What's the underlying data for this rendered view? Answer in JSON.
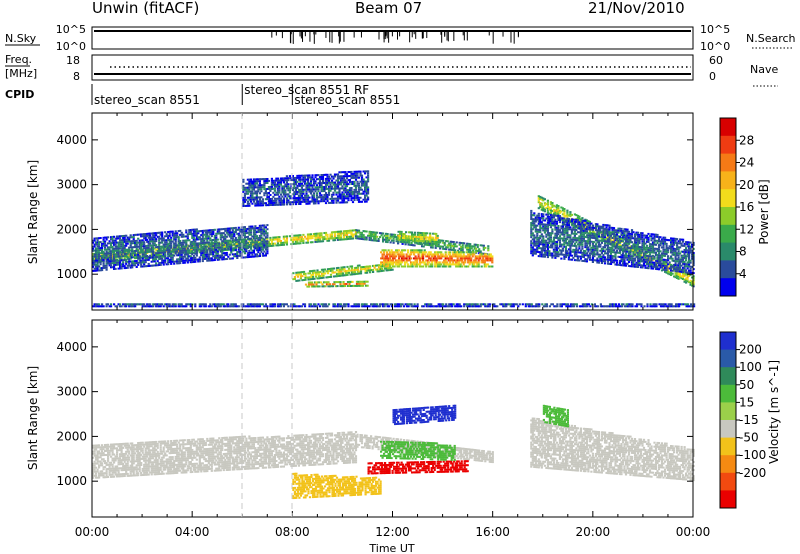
{
  "header": {
    "station": "Unwin (fitACF)",
    "beam": "Beam 07",
    "date": "21/Nov/2010"
  },
  "strips": {
    "nsky_label": "N.Sky",
    "nsearch_label": "N.Search",
    "nsky_ticks": [
      "10^5",
      "10^0"
    ],
    "nsearch_ticks": [
      "10^5",
      "10^0"
    ],
    "freq_label_1": "Freq.",
    "freq_label_2": "[MHz]",
    "freq_ticks": [
      "18",
      "8"
    ],
    "nave_label": "Nave",
    "nave_ticks": [
      "60",
      "0"
    ],
    "cpid_label": "CPID"
  },
  "cpid_segments": [
    {
      "start_hour": 0.0,
      "label": "stereo_scan 8551",
      "row": 1
    },
    {
      "start_hour": 6.0,
      "label": "stereo_scan 8551 RF",
      "row": 0
    },
    {
      "start_hour": 8.0,
      "label": "stereo_scan 8551",
      "row": 1
    }
  ],
  "chart_data": [
    {
      "type": "heatmap",
      "title": "",
      "xlabel": "Time UT",
      "ylabel": "Slant Range [km]",
      "xlim": [
        0,
        24
      ],
      "ylim": [
        200,
        4600
      ],
      "x_ticks": [
        "00:00",
        "04:00",
        "08:00",
        "12:00",
        "16:00",
        "20:00",
        "00:00"
      ],
      "y_ticks": [
        "1000",
        "2000",
        "3000",
        "4000"
      ],
      "colorbar": {
        "label": "Power [dB]",
        "ticks": [
          "4",
          "8",
          "12",
          "16",
          "20",
          "24",
          "28"
        ],
        "range": [
          0,
          32
        ],
        "colors": [
          "#0000ee",
          "#2a4b9c",
          "#2a8a6a",
          "#3aaa4a",
          "#8ccc2a",
          "#f2dc1c",
          "#f7b21a",
          "#f57a16",
          "#ef3c12",
          "#d80000"
        ]
      },
      "echo_regions": [
        {
          "t": [
            0,
            10.5
          ],
          "r_start": [
            1250,
            1780
          ],
          "r_end": [
            1450,
            2000
          ],
          "value": 17
        },
        {
          "t": [
            0,
            7
          ],
          "r_start": [
            1050,
            1400
          ],
          "r_end": [
            1800,
            2100
          ],
          "value": 6
        },
        {
          "t": [
            10.5,
            15.8
          ],
          "r_start": [
            1780,
            1420
          ],
          "r_end": [
            2000,
            1620
          ],
          "value": 11
        },
        {
          "t": [
            8,
            12
          ],
          "r_start": [
            820,
            1080
          ],
          "r_end": [
            1020,
            1250
          ],
          "value": 17
        },
        {
          "t": [
            8.5,
            11
          ],
          "r_start": [
            700,
            720
          ],
          "r_end": [
            800,
            820
          ],
          "value": 21
        },
        {
          "t": [
            11.5,
            16
          ],
          "r_start": [
            1150,
            1150
          ],
          "r_end": [
            1550,
            1450
          ],
          "value": 24
        },
        {
          "t": [
            12.2,
            13.8
          ],
          "r_start": [
            1700,
            1650
          ],
          "r_end": [
            1950,
            1900
          ],
          "value": 16
        },
        {
          "t": [
            6,
            11
          ],
          "r_start": [
            2500,
            2600
          ],
          "r_end": [
            3100,
            3300
          ],
          "value": 5
        },
        {
          "t": [
            17.8,
            24
          ],
          "r_start": [
            2450,
            700
          ],
          "r_end": [
            2750,
            950
          ],
          "value": 16
        },
        {
          "t": [
            17.5,
            24
          ],
          "r_start": [
            1400,
            1000
          ],
          "r_end": [
            2400,
            1700
          ],
          "value": 6
        },
        {
          "t": [
            0,
            24
          ],
          "r_start": [
            260,
            260
          ],
          "r_end": [
            330,
            330
          ],
          "value": 5
        }
      ]
    },
    {
      "type": "heatmap",
      "title": "",
      "xlabel": "Time UT",
      "ylabel": "Slant Range [km]",
      "xlim": [
        0,
        24
      ],
      "ylim": [
        200,
        4600
      ],
      "x_ticks": [
        "00:00",
        "04:00",
        "08:00",
        "12:00",
        "16:00",
        "20:00",
        "00:00"
      ],
      "y_ticks": [
        "1000",
        "2000",
        "3000",
        "4000"
      ],
      "colorbar": {
        "label": "Velocity [m s^-1]",
        "ticks": [
          "200",
          "100",
          "50",
          "15",
          "-15",
          "-50",
          "-100",
          "-200"
        ],
        "colors": [
          "#1f2fcf",
          "#2a5aa8",
          "#2f8a5a",
          "#4cbb3a",
          "#9bd04a",
          "#c8c8c0",
          "#f2c21a",
          "#f58a12",
          "#f24a10",
          "#ea0000"
        ]
      },
      "echo_regions": [
        {
          "t": [
            0,
            10.5
          ],
          "r_start": [
            1050,
            1400
          ],
          "r_end": [
            1800,
            2100
          ],
          "value": 0
        },
        {
          "t": [
            10.5,
            16
          ],
          "r_start": [
            1750,
            1400
          ],
          "r_end": [
            2050,
            1650
          ],
          "value": 0
        },
        {
          "t": [
            17.5,
            24
          ],
          "r_start": [
            1300,
            1000
          ],
          "r_end": [
            2400,
            1700
          ],
          "value": 0
        },
        {
          "t": [
            8,
            11.5
          ],
          "r_start": [
            600,
            700
          ],
          "r_end": [
            1150,
            1050
          ],
          "value": -40
        },
        {
          "t": [
            11,
            15
          ],
          "r_start": [
            1150,
            1200
          ],
          "r_end": [
            1400,
            1450
          ],
          "value": -180
        },
        {
          "t": [
            11.5,
            14.5
          ],
          "r_start": [
            1500,
            1450
          ],
          "r_end": [
            1900,
            1800
          ],
          "value": 40
        },
        {
          "t": [
            12,
            14.5
          ],
          "r_start": [
            2250,
            2350
          ],
          "r_end": [
            2600,
            2700
          ],
          "value": 200
        },
        {
          "t": [
            18,
            19
          ],
          "r_start": [
            2300,
            2200
          ],
          "r_end": [
            2700,
            2600
          ],
          "value": 40
        }
      ]
    }
  ]
}
